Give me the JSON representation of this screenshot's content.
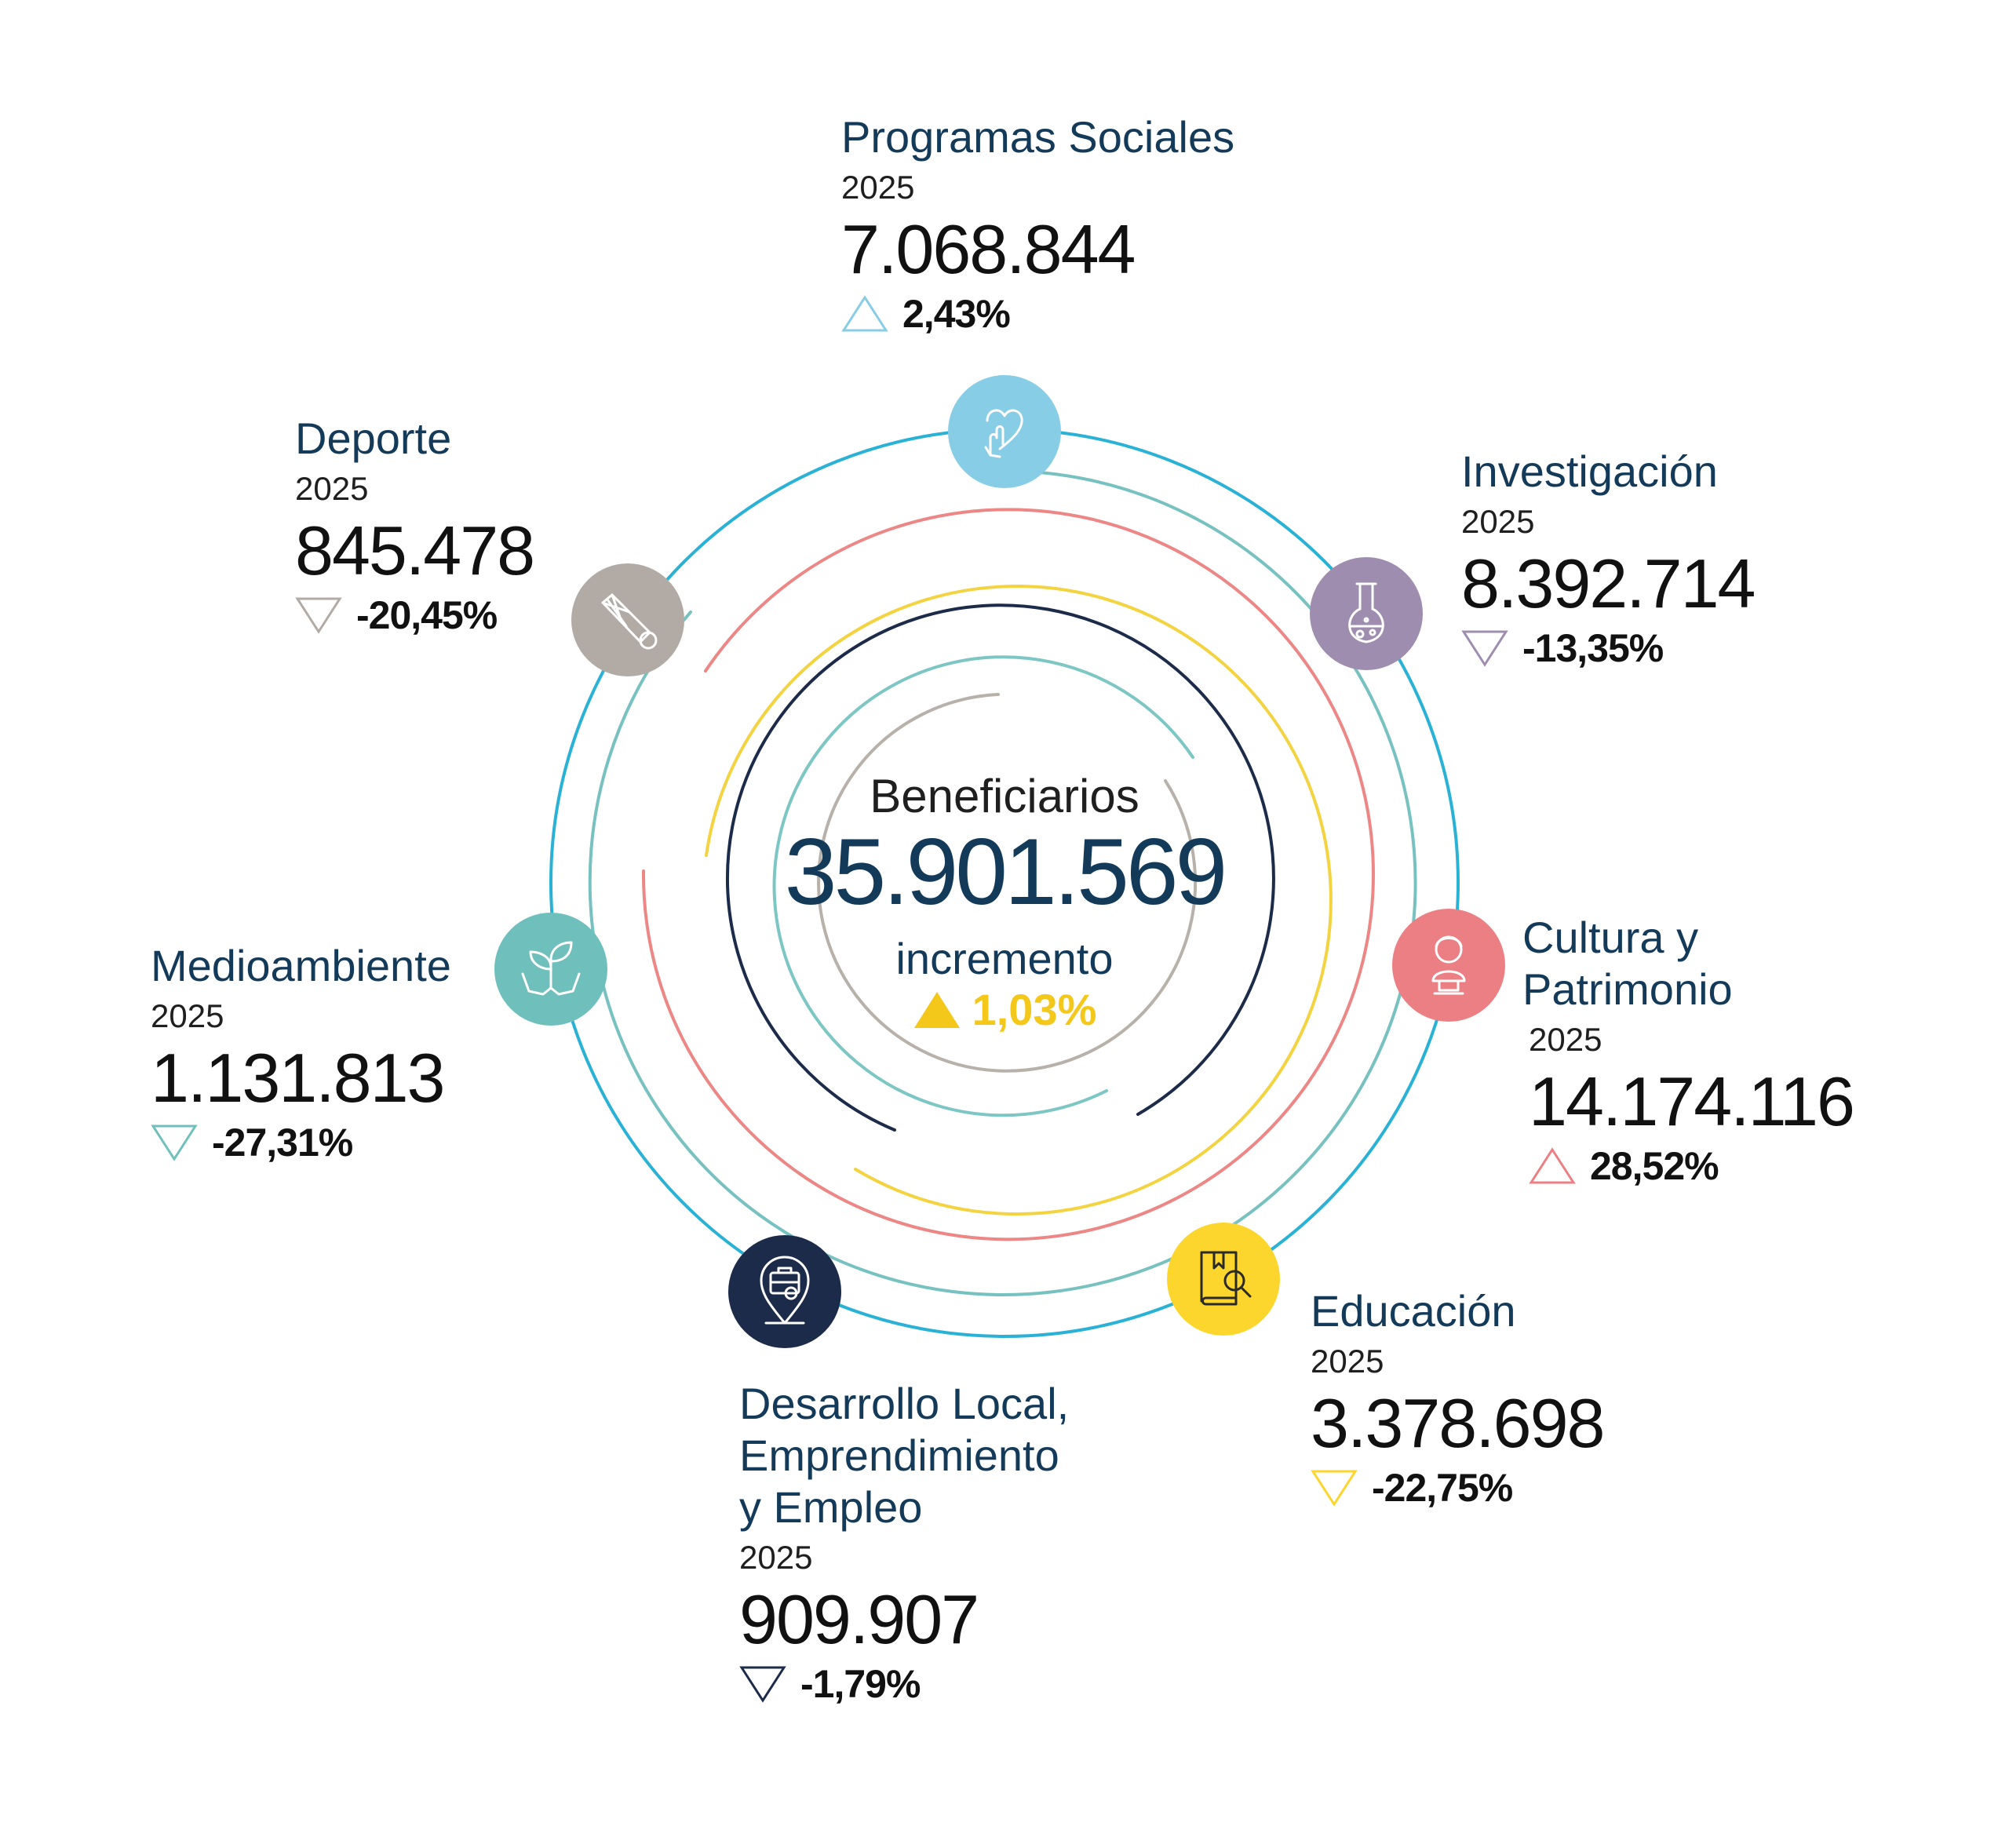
{
  "colors": {
    "navy_text": "#143a5a",
    "ring_outer": "#29b2d6",
    "ring_teal": "#77c2c0",
    "ring_salmon": "#ec8786",
    "ring_yellow": "#f4d340",
    "ring_navy": "#1d2b4a",
    "ring_inner_teal": "#7cc6c4",
    "ring_gray": "#b7b1aa",
    "increase_yellow": "#f4c81b"
  },
  "center": {
    "label": "Beneficiarios",
    "value": "35.901.569",
    "sub_label": "incremento",
    "change": "1,03%",
    "direction": "up"
  },
  "categories": [
    {
      "id": "programas-sociales",
      "title_lines": [
        "Programas Sociales"
      ],
      "year": "2025",
      "value": "7.068.844",
      "change": "2,43%",
      "direction": "up",
      "color": "#87cde6",
      "icon": "heart-hand-icon"
    },
    {
      "id": "investigacion",
      "title_lines": [
        "Investigación"
      ],
      "year": "2025",
      "value": "8.392.714",
      "change": "-13,35%",
      "direction": "down",
      "color": "#9f8db0",
      "icon": "flask-icon"
    },
    {
      "id": "cultura-patrimonio",
      "title_lines": [
        "Cultura y",
        "Patrimonio"
      ],
      "year": "2025",
      "value": "14.174.116",
      "change": "28,52%",
      "direction": "up",
      "color": "#ec7f83",
      "icon": "bust-statue-icon"
    },
    {
      "id": "educacion",
      "title_lines": [
        "Educación"
      ],
      "year": "2025",
      "value": "3.378.698",
      "change": "-22,75%",
      "direction": "down",
      "color": "#fcd62c",
      "icon": "book-search-icon"
    },
    {
      "id": "desarrollo-local",
      "title_lines": [
        "Desarrollo Local,",
        "Emprendimiento",
        "y Empleo"
      ],
      "year": "2025",
      "value": "909.907",
      "change": "-1,79%",
      "direction": "down",
      "color": "#1d2b4a",
      "icon": "briefcase-pin-icon"
    },
    {
      "id": "medioambiente",
      "title_lines": [
        "Medioambiente"
      ],
      "year": "2025",
      "value": "1.131.813",
      "change": "-27,31%",
      "direction": "down",
      "color": "#6fc0bc",
      "icon": "plant-hands-icon"
    },
    {
      "id": "deporte",
      "title_lines": [
        "Deporte"
      ],
      "year": "2025",
      "value": "845.478",
      "change": "-20,45%",
      "direction": "down",
      "color": "#b2aba5",
      "icon": "shuttlecock-icon"
    }
  ]
}
